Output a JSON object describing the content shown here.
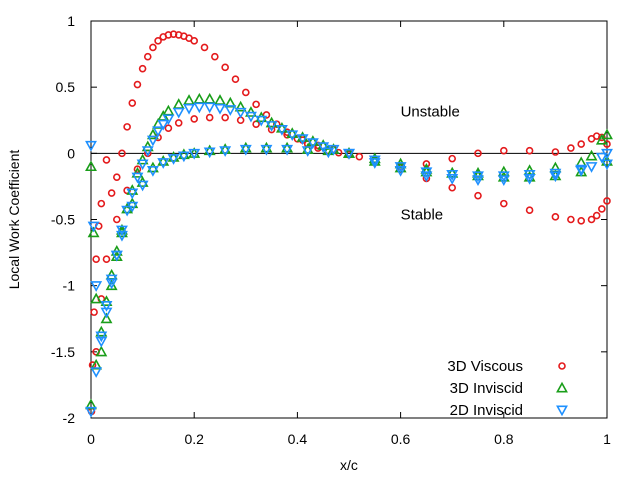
{
  "chart_data": {
    "type": "scatter",
    "title": "",
    "xlabel": "x/c",
    "ylabel": "Local Work Coefficient",
    "xlim": [
      0,
      1
    ],
    "ylim": [
      -2,
      1
    ],
    "x_ticks": [
      "0",
      "0.2",
      "0.4",
      "0.6",
      "0.8",
      "1"
    ],
    "y_ticks": [
      "1",
      "0.5",
      "0",
      "-0.5",
      "-1",
      "-1.5",
      "-2"
    ],
    "grid": false,
    "zero_line": true,
    "legend_position": "bottom-right",
    "annotations": [
      {
        "text": "Unstable",
        "x": 0.6,
        "y": 0.28
      },
      {
        "text": "Stable",
        "x": 0.6,
        "y": -0.5
      }
    ],
    "series": [
      {
        "name": "3D Viscous",
        "marker": "circle",
        "color": "#e41a1c",
        "branches": [
          {
            "x": [
              0.001,
              0.003,
              0.006,
              0.01,
              0.015,
              0.02,
              0.03,
              0.04,
              0.05,
              0.06,
              0.07,
              0.08,
              0.09,
              0.1,
              0.11,
              0.12,
              0.13,
              0.14,
              0.15,
              0.16,
              0.17,
              0.18,
              0.19,
              0.2,
              0.22,
              0.24,
              0.26,
              0.28,
              0.3,
              0.32,
              0.34,
              0.36,
              0.38,
              0.4,
              0.42,
              0.44,
              0.46,
              0.48,
              0.5,
              0.52,
              0.55,
              0.6,
              0.65,
              0.7,
              0.75,
              0.8,
              0.85,
              0.9,
              0.93,
              0.95,
              0.97,
              0.98,
              0.99,
              1.0
            ],
            "y": [
              -1.95,
              -1.6,
              -1.2,
              -0.8,
              -0.55,
              -0.38,
              -0.05,
              -0.3,
              -0.18,
              0.0,
              0.2,
              0.38,
              0.52,
              0.64,
              0.73,
              0.8,
              0.85,
              0.88,
              0.895,
              0.9,
              0.895,
              0.885,
              0.87,
              0.85,
              0.8,
              0.73,
              0.65,
              0.56,
              0.46,
              0.37,
              0.29,
              0.22,
              0.16,
              0.11,
              0.07,
              0.04,
              0.02,
              0.005,
              -0.01,
              -0.025,
              -0.05,
              -0.1,
              -0.08,
              -0.04,
              0.0,
              0.02,
              0.02,
              0.01,
              0.04,
              0.07,
              0.11,
              0.13,
              0.12,
              0.07
            ]
          },
          {
            "x": [
              0.01,
              0.02,
              0.03,
              0.05,
              0.07,
              0.09,
              0.11,
              0.13,
              0.15,
              0.17,
              0.2,
              0.23,
              0.26,
              0.29,
              0.32,
              0.35,
              0.38,
              0.41,
              0.44,
              0.47,
              0.5,
              0.55,
              0.6,
              0.65,
              0.7,
              0.75,
              0.8,
              0.85,
              0.9,
              0.93,
              0.95,
              0.97,
              0.98,
              0.99,
              1.0
            ],
            "y": [
              -1.5,
              -1.1,
              -0.8,
              -0.5,
              -0.28,
              -0.12,
              0.0,
              0.12,
              0.19,
              0.23,
              0.26,
              0.27,
              0.27,
              0.25,
              0.22,
              0.18,
              0.14,
              0.1,
              0.06,
              0.03,
              0.0,
              -0.05,
              -0.12,
              -0.19,
              -0.26,
              -0.32,
              -0.38,
              -0.43,
              -0.48,
              -0.5,
              -0.51,
              -0.5,
              -0.47,
              -0.42,
              -0.36
            ]
          }
        ]
      },
      {
        "name": "3D Inviscid",
        "marker": "triangle-up",
        "color": "#1a9e1a",
        "branches": [
          {
            "x": [
              0.0,
              0.005,
              0.01,
              0.02,
              0.03,
              0.04,
              0.05,
              0.06,
              0.07,
              0.08,
              0.09,
              0.1,
              0.11,
              0.12,
              0.13,
              0.14,
              0.15,
              0.17,
              0.19,
              0.21,
              0.23,
              0.25,
              0.27,
              0.29,
              0.31,
              0.33,
              0.35,
              0.37,
              0.39,
              0.41,
              0.43,
              0.45,
              0.47,
              0.5,
              0.55,
              0.6,
              0.65,
              0.7,
              0.75,
              0.8,
              0.85,
              0.9,
              0.95,
              0.97,
              0.99,
              1.0
            ],
            "y": [
              -0.1,
              -0.6,
              -1.1,
              -1.5,
              -1.25,
              -1.0,
              -0.78,
              -0.58,
              -0.42,
              -0.28,
              -0.15,
              -0.05,
              0.05,
              0.14,
              0.22,
              0.28,
              0.32,
              0.37,
              0.4,
              0.41,
              0.41,
              0.4,
              0.38,
              0.35,
              0.31,
              0.27,
              0.23,
              0.19,
              0.15,
              0.12,
              0.09,
              0.06,
              0.03,
              0.0,
              -0.06,
              -0.11,
              -0.14,
              -0.15,
              -0.15,
              -0.14,
              -0.13,
              -0.11,
              -0.07,
              -0.02,
              0.1,
              0.14
            ]
          },
          {
            "x": [
              0.0,
              0.01,
              0.02,
              0.03,
              0.04,
              0.05,
              0.06,
              0.08,
              0.1,
              0.12,
              0.14,
              0.16,
              0.18,
              0.2,
              0.23,
              0.26,
              0.3,
              0.34,
              0.38,
              0.42,
              0.46,
              0.5,
              0.55,
              0.6,
              0.65,
              0.7,
              0.75,
              0.8,
              0.85,
              0.9,
              0.95,
              1.0
            ],
            "y": [
              -1.9,
              -1.6,
              -1.35,
              -1.12,
              -0.92,
              -0.74,
              -0.6,
              -0.38,
              -0.22,
              -0.11,
              -0.06,
              -0.03,
              -0.01,
              0.0,
              0.02,
              0.03,
              0.04,
              0.04,
              0.04,
              0.03,
              0.02,
              0.0,
              -0.04,
              -0.08,
              -0.12,
              -0.15,
              -0.17,
              -0.18,
              -0.18,
              -0.17,
              -0.14,
              -0.06
            ]
          }
        ]
      },
      {
        "name": "2D Inviscid",
        "marker": "triangle-down",
        "color": "#1e90ff",
        "branches": [
          {
            "x": [
              0.0,
              0.005,
              0.01,
              0.02,
              0.03,
              0.04,
              0.05,
              0.06,
              0.07,
              0.08,
              0.09,
              0.1,
              0.11,
              0.12,
              0.13,
              0.14,
              0.15,
              0.17,
              0.19,
              0.21,
              0.23,
              0.25,
              0.27,
              0.29,
              0.31,
              0.33,
              0.35,
              0.37,
              0.39,
              0.41,
              0.43,
              0.45,
              0.47,
              0.5,
              0.55,
              0.6,
              0.65,
              0.7,
              0.75,
              0.8,
              0.85,
              0.9,
              0.95,
              0.97,
              0.99,
              1.0
            ],
            "y": [
              0.06,
              -0.55,
              -1.0,
              -1.42,
              -1.2,
              -0.98,
              -0.77,
              -0.58,
              -0.43,
              -0.3,
              -0.18,
              -0.08,
              0.02,
              0.1,
              0.17,
              0.22,
              0.26,
              0.31,
              0.34,
              0.35,
              0.35,
              0.34,
              0.33,
              0.31,
              0.28,
              0.25,
              0.21,
              0.18,
              0.14,
              0.11,
              0.08,
              0.05,
              0.03,
              0.0,
              -0.07,
              -0.13,
              -0.17,
              -0.19,
              -0.2,
              -0.2,
              -0.19,
              -0.17,
              -0.13,
              -0.1,
              -0.03,
              0.0
            ]
          },
          {
            "x": [
              0.0,
              0.01,
              0.02,
              0.03,
              0.04,
              0.05,
              0.06,
              0.08,
              0.1,
              0.12,
              0.14,
              0.16,
              0.18,
              0.2,
              0.23,
              0.26,
              0.3,
              0.34,
              0.38,
              0.42,
              0.46,
              0.5,
              0.55,
              0.6,
              0.65,
              0.7,
              0.75,
              0.8,
              0.85,
              0.9,
              0.95,
              1.0
            ],
            "y": [
              -1.95,
              -1.65,
              -1.38,
              -1.15,
              -0.95,
              -0.77,
              -0.62,
              -0.4,
              -0.24,
              -0.13,
              -0.07,
              -0.04,
              -0.02,
              0.0,
              0.01,
              0.02,
              0.03,
              0.03,
              0.03,
              0.02,
              0.01,
              0.0,
              -0.05,
              -0.1,
              -0.14,
              -0.16,
              -0.17,
              -0.17,
              -0.16,
              -0.15,
              -0.12,
              -0.08
            ]
          }
        ]
      }
    ]
  }
}
